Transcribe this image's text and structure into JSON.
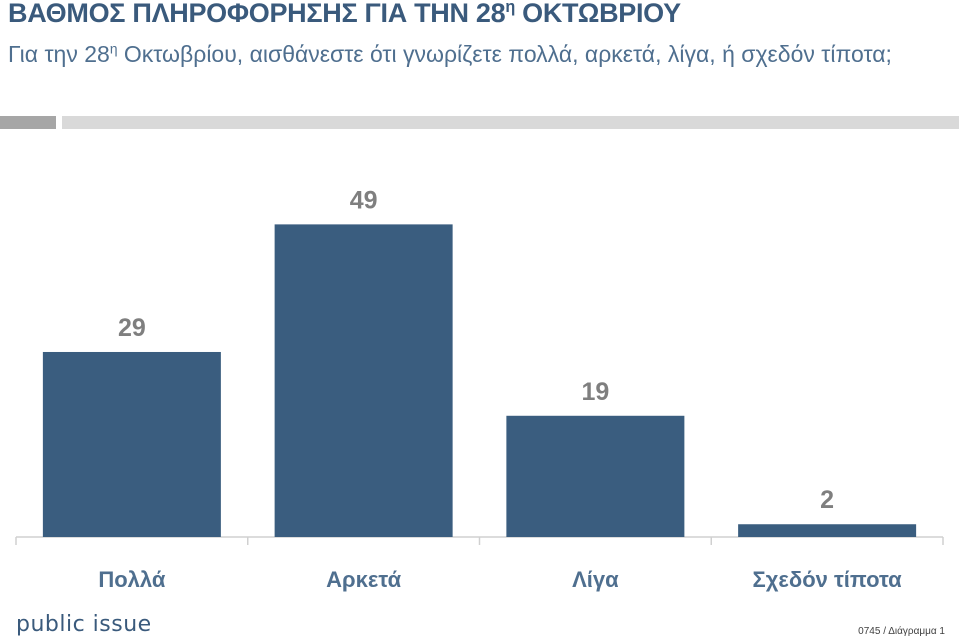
{
  "header": {
    "title_main": "ΒΑΘΜΟΣ ΠΛΗΡΟΦΟΡΗΣΗΣ ΓΙΑ ΤΗΝ 28",
    "title_sup": "η",
    "title_end": " ΟΚΤΩΒΡΙΟΥ",
    "subtitle_pre": "Για την 28",
    "subtitle_sup": "η",
    "subtitle_post": " Οκτωβρίου, αισθάνεστε ότι γνωρίζετε πολλά, αρκετά, λίγα, ή σχεδόν τίποτα;"
  },
  "footer": {
    "brand": "public issue",
    "reference": "0745 / Διάγραμμα 1"
  },
  "colors": {
    "bar": "#3a5d7f",
    "title": "#3a5a7c",
    "value_label": "#7f7f7f",
    "category_label": "#4f6f8f"
  },
  "chart_data": {
    "type": "bar",
    "categories": [
      "Πολλά",
      "Αρκετά",
      "Λίγα",
      "Σχεδόν τίποτα"
    ],
    "values": [
      29,
      49,
      19,
      2
    ],
    "title": "",
    "xlabel": "",
    "ylabel": "",
    "ylim": [
      0,
      60
    ],
    "grid": false,
    "legend": "none",
    "data_labels": true
  }
}
